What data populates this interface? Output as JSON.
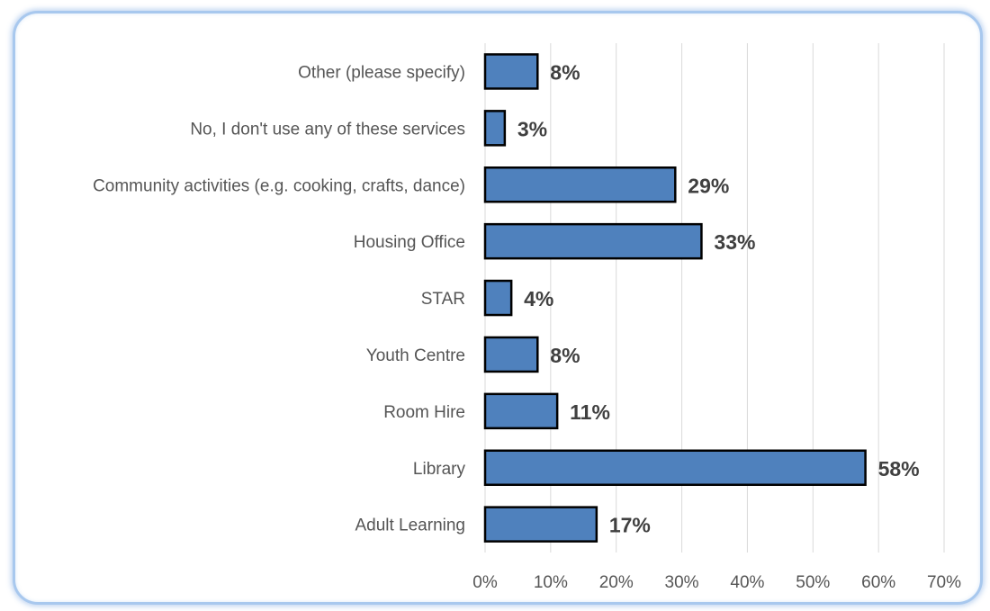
{
  "chart_data": {
    "type": "bar",
    "orientation": "horizontal",
    "categories": [
      "Other (please specify)",
      "No, I don't use any of these services",
      "Community activities (e.g. cooking, crafts, dance)",
      "Housing Office",
      "STAR",
      "Youth Centre",
      "Room Hire",
      "Library",
      "Adult Learning"
    ],
    "values": [
      8,
      3,
      29,
      33,
      4,
      8,
      11,
      58,
      17
    ],
    "data_labels": [
      "8%",
      "3%",
      "29%",
      "33%",
      "4%",
      "8%",
      "11%",
      "58%",
      "17%"
    ],
    "x_ticks": [
      "0%",
      "10%",
      "20%",
      "30%",
      "40%",
      "50%",
      "60%",
      "70%"
    ],
    "xlim": [
      0,
      70
    ],
    "grid": "vertical",
    "bar_color": "#4f81bd",
    "legend": "none"
  }
}
